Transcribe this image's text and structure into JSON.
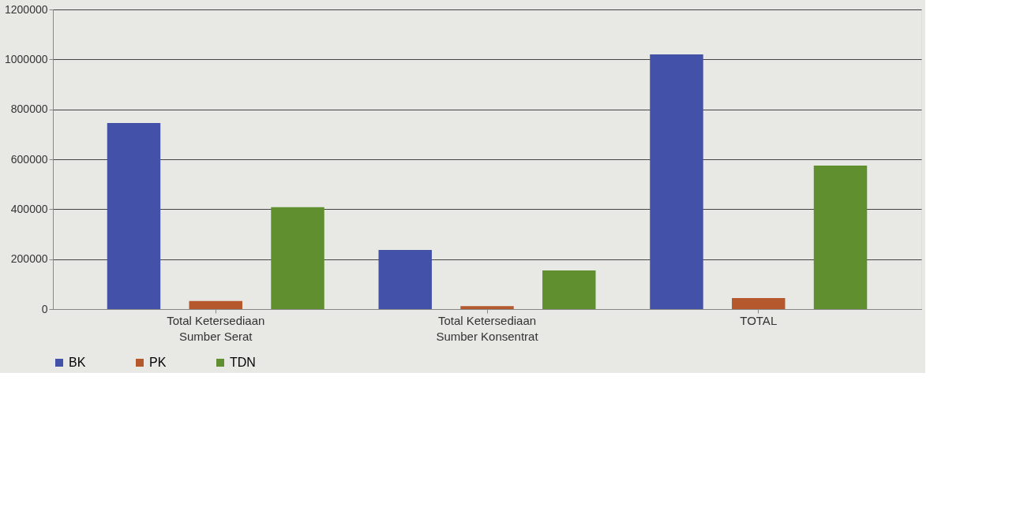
{
  "chart_data": {
    "type": "bar",
    "categories": [
      "Total Ketersediaan Sumber Serat",
      "Total Ketersediaan Sumber Konsentrat",
      "TOTAL"
    ],
    "series": [
      {
        "name": "BK",
        "color": "#4352a8",
        "values": [
          745000,
          237000,
          1020000
        ]
      },
      {
        "name": "PK",
        "color": "#b5582e",
        "values": [
          32000,
          12000,
          44000
        ]
      },
      {
        "name": "TDN",
        "color": "#5f8f2e",
        "values": [
          408000,
          155000,
          575000
        ]
      }
    ],
    "ylim": [
      0,
      1200000
    ],
    "yticks": [
      0,
      200000,
      400000,
      600000,
      800000,
      1000000,
      1200000
    ],
    "grid": "y",
    "legend": "bottom"
  }
}
